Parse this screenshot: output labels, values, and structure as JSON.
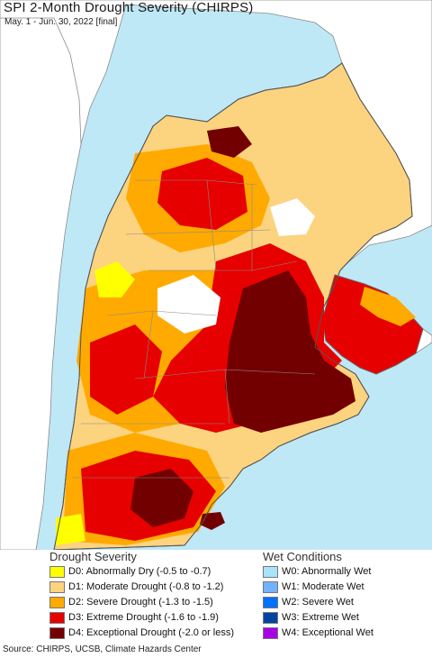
{
  "title": "SPI 2-Month Drought Severity (CHIRPS)",
  "subtitle": "May. 1 - Jun. 30, 2022 [final]",
  "colors": {
    "ocean": "#bfe8f6",
    "neighbor_land": "#ffffff",
    "boundary": "#8a8a8a"
  },
  "legend": {
    "drought_title": "Drought Severity",
    "wet_title": "Wet Conditions",
    "drought": [
      {
        "code": "D0",
        "label": "D0: Abnormally Dry (-0.5 to -0.7)",
        "color": "#ffff00"
      },
      {
        "code": "D1",
        "label": "D1: Moderate Drought (-0.8 to -1.2)",
        "color": "#fcd37f"
      },
      {
        "code": "D2",
        "label": "D2: Severe Drought (-1.3 to -1.5)",
        "color": "#ffaa00"
      },
      {
        "code": "D3",
        "label": "D3: Extreme Drought (-1.6 to -1.9)",
        "color": "#e60000"
      },
      {
        "code": "D4",
        "label": "D4: Exceptional Drought (-2.0 or less)",
        "color": "#730000"
      }
    ],
    "wet": [
      {
        "code": "W0",
        "label": "W0: Abnormally Wet",
        "color": "#aae4fa"
      },
      {
        "code": "W1",
        "label": "W1: Moderate Wet",
        "color": "#73b2ff"
      },
      {
        "code": "W2",
        "label": "W2: Severe Wet",
        "color": "#0070ff"
      },
      {
        "code": "W3",
        "label": "W3: Extreme Wet",
        "color": "#0044a3"
      },
      {
        "code": "W4",
        "label": "W4: Exceptional Wet",
        "color": "#a900e6"
      }
    ]
  },
  "source": "Source: CHIRPS, UCSB, Climate Hazards Center"
}
